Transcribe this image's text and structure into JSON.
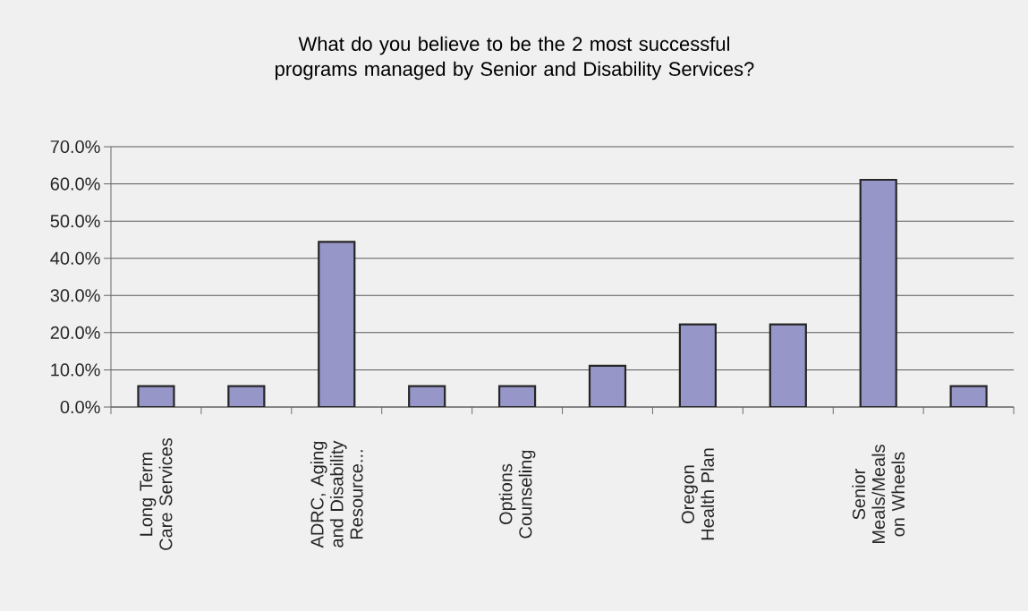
{
  "chart_data": {
    "type": "bar",
    "title": "What do you believe to be the 2 most successful programs managed by Senior and Disability Services?",
    "categories": [
      "Long Term Care Services",
      null,
      "ADRC, Aging and Disability Resource...",
      null,
      "Options Counseling",
      null,
      "Oregon Health Plan",
      null,
      "Senior Meals/Meals on Wheels",
      null
    ],
    "values": [
      5.6,
      5.6,
      44.4,
      5.6,
      5.6,
      11.1,
      22.2,
      22.2,
      61.1,
      5.6
    ],
    "color": "#9696c9",
    "ylim": [
      0,
      70
    ],
    "yticks": [
      {
        "value": 0,
        "label": "0.0%"
      },
      {
        "value": 10,
        "label": "10.0%"
      },
      {
        "value": 20,
        "label": "20.0%"
      },
      {
        "value": 30,
        "label": "30.0%"
      },
      {
        "value": 40,
        "label": "40.0%"
      },
      {
        "value": 50,
        "label": "50.0%"
      },
      {
        "value": 60,
        "label": "60.0%"
      },
      {
        "value": 70,
        "label": "70.0%"
      }
    ],
    "grid": "y"
  }
}
